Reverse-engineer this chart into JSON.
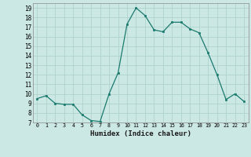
{
  "x": [
    0,
    1,
    2,
    3,
    4,
    5,
    6,
    7,
    8,
    9,
    10,
    11,
    12,
    13,
    14,
    15,
    16,
    17,
    18,
    19,
    20,
    21,
    22,
    23
  ],
  "y": [
    9.5,
    9.8,
    9.0,
    8.9,
    8.9,
    7.8,
    7.2,
    7.1,
    10.0,
    12.2,
    17.3,
    19.0,
    18.2,
    16.7,
    16.5,
    17.5,
    17.5,
    16.8,
    16.4,
    14.3,
    12.0,
    9.4,
    10.0,
    9.2
  ],
  "xlabel": "Humidex (Indice chaleur)",
  "ylim": [
    7,
    19.5
  ],
  "xlim": [
    -0.5,
    23.5
  ],
  "yticks": [
    7,
    8,
    9,
    10,
    11,
    12,
    13,
    14,
    15,
    16,
    17,
    18,
    19
  ],
  "xticks": [
    0,
    1,
    2,
    3,
    4,
    5,
    6,
    7,
    8,
    9,
    10,
    11,
    12,
    13,
    14,
    15,
    16,
    17,
    18,
    19,
    20,
    21,
    22,
    23
  ],
  "line_color": "#1a7a6e",
  "marker_color": "#1a7a6e",
  "bg_color": "#cce8e4",
  "grid_color": "#aacfca",
  "xlabel_color": "#1a1a1a"
}
